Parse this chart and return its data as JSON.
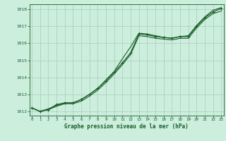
{
  "title": "Graphe pression niveau de la mer (hPa)",
  "bg_color": "#cceedd",
  "grid_color": "#aaccbb",
  "line_color": "#1a5c2a",
  "x_values": [
    0,
    1,
    2,
    3,
    4,
    5,
    6,
    7,
    8,
    9,
    10,
    11,
    12,
    13,
    14,
    15,
    16,
    17,
    18,
    19,
    20,
    21,
    22,
    23
  ],
  "series1": [
    1012.2,
    1012.0,
    1012.1,
    1012.4,
    1012.5,
    1012.5,
    1012.7,
    1013.0,
    1013.35,
    1013.8,
    1014.3,
    1014.85,
    1015.45,
    1016.55,
    1016.5,
    1016.4,
    1016.35,
    1016.3,
    1016.4,
    1016.4,
    1017.0,
    1017.5,
    1017.85,
    1018.05
  ],
  "series2": [
    1012.2,
    1012.0,
    1012.15,
    1012.35,
    1012.5,
    1012.5,
    1012.7,
    1013.0,
    1013.35,
    1013.85,
    1014.35,
    1015.1,
    1015.8,
    1016.6,
    1016.55,
    1016.45,
    1016.35,
    1016.3,
    1016.4,
    1016.45,
    1017.05,
    1017.55,
    1017.95,
    1018.1
  ],
  "series3": [
    1012.2,
    1012.0,
    1012.1,
    1012.3,
    1012.45,
    1012.45,
    1012.6,
    1012.9,
    1013.25,
    1013.7,
    1014.2,
    1014.75,
    1015.35,
    1016.45,
    1016.4,
    1016.3,
    1016.25,
    1016.2,
    1016.3,
    1016.3,
    1016.9,
    1017.4,
    1017.75,
    1017.9
  ],
  "ylim_min": 1011.75,
  "ylim_max": 1018.3,
  "yticks": [
    1012,
    1013,
    1014,
    1015,
    1016,
    1017,
    1018
  ],
  "xlim_min": 0,
  "xlim_max": 23
}
